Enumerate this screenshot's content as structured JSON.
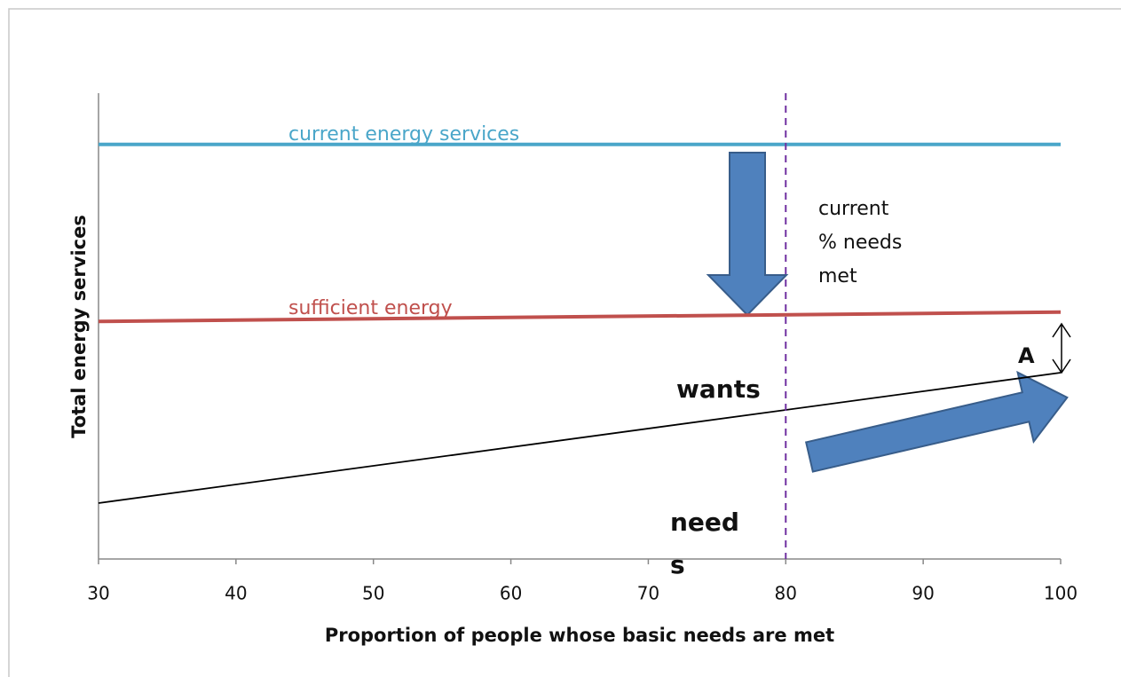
{
  "chart_data": {
    "type": "line",
    "x_label": "Proportion of people whose basic needs are met",
    "y_label": "Total energy services",
    "xlim": [
      30,
      100
    ],
    "xticks": [
      30,
      40,
      50,
      60,
      70,
      80,
      90,
      100
    ],
    "ylim": [
      0,
      100
    ],
    "vline": 80,
    "vline_color": "#7030a0",
    "series": [
      {
        "name": "current energy services",
        "color": "#4aa6c9",
        "x": [
          30,
          100
        ],
        "values": [
          89,
          89
        ]
      },
      {
        "name": "sufficient energy",
        "color": "#c0504d",
        "x": [
          30,
          100
        ],
        "values": [
          51,
          53
        ]
      },
      {
        "name": "needs",
        "color": "#000000",
        "x": [
          30,
          100
        ],
        "values": [
          12,
          40
        ]
      }
    ],
    "annotations": [
      {
        "lines": [
          "current",
          "% needs",
          "met"
        ]
      },
      {
        "lines": [
          "wants"
        ]
      },
      {
        "lines": [
          "need",
          "s"
        ]
      },
      {
        "lines": [
          "A"
        ]
      }
    ]
  }
}
